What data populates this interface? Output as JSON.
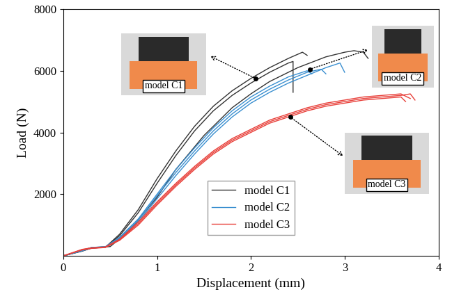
{
  "chart_data": {
    "type": "line",
    "x_label": "Displacement (mm)",
    "y_label": "Load (N)",
    "xlim": [
      0,
      4
    ],
    "xticks": [
      0,
      1,
      2,
      3,
      4
    ],
    "ylim": [
      0,
      8000
    ],
    "yticks": [
      2000,
      4000,
      6000,
      8000
    ],
    "legend": "lower center",
    "grid": false,
    "series": [
      {
        "name": "model C1",
        "color": "#333333",
        "curves": [
          {
            "x": [
              0,
              0.2,
              0.3,
              0.45,
              0.6,
              0.8,
              1.0,
              1.2,
              1.4,
              1.6,
              1.8,
              2.0,
              2.2,
              2.4,
              2.55,
              2.6
            ],
            "values": [
              0,
              150,
              250,
              280,
              700,
              1500,
              2500,
              3400,
              4200,
              4850,
              5350,
              5750,
              6100,
              6400,
              6600,
              6500
            ]
          },
          {
            "x": [
              0,
              0.2,
              0.3,
              0.45,
              0.6,
              0.8,
              1.0,
              1.2,
              1.4,
              1.6,
              1.8,
              2.0,
              2.2,
              2.4,
              2.45,
              2.45
            ],
            "values": [
              0,
              160,
              260,
              290,
              650,
              1400,
              2350,
              3250,
              4050,
              4700,
              5200,
              5600,
              5950,
              6250,
              6300,
              5300
            ]
          },
          {
            "x": [
              0,
              0.2,
              0.3,
              0.5,
              0.7,
              1.0,
              1.2,
              1.5,
              1.8,
              2.0,
              2.2,
              2.5,
              2.8,
              3.0,
              3.1,
              3.2,
              3.25
            ],
            "values": [
              0,
              170,
              270,
              300,
              800,
              1900,
              2800,
              3900,
              4800,
              5250,
              5650,
              6100,
              6450,
              6600,
              6650,
              6600,
              6400
            ]
          }
        ]
      },
      {
        "name": "model C2",
        "color": "#3a8fd0",
        "curves": [
          {
            "x": [
              0,
              0.2,
              0.3,
              0.45,
              0.6,
              0.8,
              1.0,
              1.2,
              1.4,
              1.6,
              1.8,
              2.0,
              2.2,
              2.4,
              2.6,
              2.65
            ],
            "values": [
              0,
              180,
              270,
              300,
              600,
              1200,
              2000,
              2800,
              3500,
              4150,
              4700,
              5150,
              5500,
              5800,
              6000,
              5900
            ]
          },
          {
            "x": [
              0,
              0.2,
              0.3,
              0.45,
              0.6,
              0.8,
              1.0,
              1.2,
              1.4,
              1.6,
              1.8,
              2.0,
              2.2,
              2.4,
              2.6,
              2.75,
              2.8
            ],
            "values": [
              0,
              170,
              260,
              290,
              580,
              1150,
              1950,
              2700,
              3400,
              4050,
              4600,
              5050,
              5400,
              5700,
              5950,
              6050,
              5900
            ]
          },
          {
            "x": [
              0,
              0.2,
              0.3,
              0.45,
              0.6,
              0.8,
              1.0,
              1.2,
              1.4,
              1.6,
              1.8,
              2.0,
              2.2,
              2.4,
              2.6,
              2.8,
              2.95,
              3.0
            ],
            "values": [
              0,
              160,
              250,
              280,
              560,
              1100,
              1850,
              2600,
              3300,
              3950,
              4500,
              4950,
              5300,
              5600,
              5850,
              6100,
              6250,
              5950
            ]
          }
        ]
      },
      {
        "name": "model C3",
        "color": "#e8403a",
        "curves": [
          {
            "x": [
              0,
              0.2,
              0.3,
              0.45,
              0.6,
              0.8,
              1.0,
              1.2,
              1.4,
              1.6,
              1.8,
              2.0,
              2.2,
              2.4,
              2.6,
              2.8,
              3.0,
              3.2,
              3.4,
              3.6,
              3.65
            ],
            "values": [
              0,
              200,
              250,
              280,
              500,
              1000,
              1650,
              2250,
              2800,
              3300,
              3700,
              4000,
              4300,
              4500,
              4700,
              4850,
              4950,
              5050,
              5100,
              5150,
              5000
            ]
          },
          {
            "x": [
              0,
              0.2,
              0.3,
              0.45,
              0.6,
              0.8,
              1.0,
              1.2,
              1.4,
              1.6,
              1.8,
              2.0,
              2.2,
              2.4,
              2.6,
              2.8,
              3.0,
              3.2,
              3.4,
              3.6,
              3.7,
              3.75
            ],
            "values": [
              0,
              190,
              240,
              270,
              520,
              1050,
              1700,
              2300,
              2850,
              3350,
              3750,
              4050,
              4350,
              4550,
              4750,
              4900,
              5000,
              5100,
              5150,
              5200,
              5250,
              5050
            ]
          },
          {
            "x": [
              0,
              0.2,
              0.3,
              0.45,
              0.6,
              0.8,
              1.0,
              1.2,
              1.4,
              1.6,
              1.8,
              2.0,
              2.2,
              2.4,
              2.6,
              2.8,
              3.0,
              3.2,
              3.4,
              3.6,
              3.7
            ],
            "values": [
              0,
              210,
              260,
              290,
              540,
              1100,
              1750,
              2350,
              2900,
              3400,
              3800,
              4100,
              4400,
              4600,
              4800,
              4950,
              5050,
              5150,
              5200,
              5250,
              5100
            ]
          }
        ]
      }
    ],
    "annotations": [
      {
        "text": "model C1",
        "x": 2.05,
        "y": 5750
      },
      {
        "text": "model C2",
        "x": 2.63,
        "y": 6050
      },
      {
        "text": "model C3",
        "x": 2.42,
        "y": 4500
      }
    ]
  }
}
